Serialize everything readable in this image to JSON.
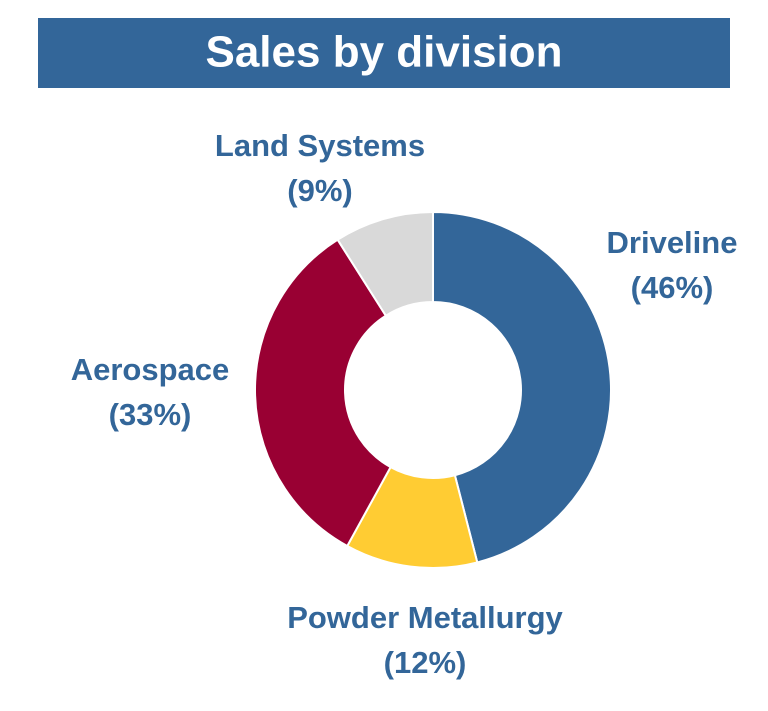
{
  "chart_data": {
    "type": "donut",
    "title": "Sales by division",
    "categories": [
      "Driveline",
      "Powder Metallurgy",
      "Aerospace",
      "Land Systems"
    ],
    "values": [
      46,
      12,
      33,
      9
    ],
    "value_labels": [
      "(46%)",
      "(12%)",
      "(33%)",
      "(9%)"
    ],
    "colors": [
      "#336699",
      "#ffcc33",
      "#990033",
      "#d9d9d9"
    ]
  }
}
